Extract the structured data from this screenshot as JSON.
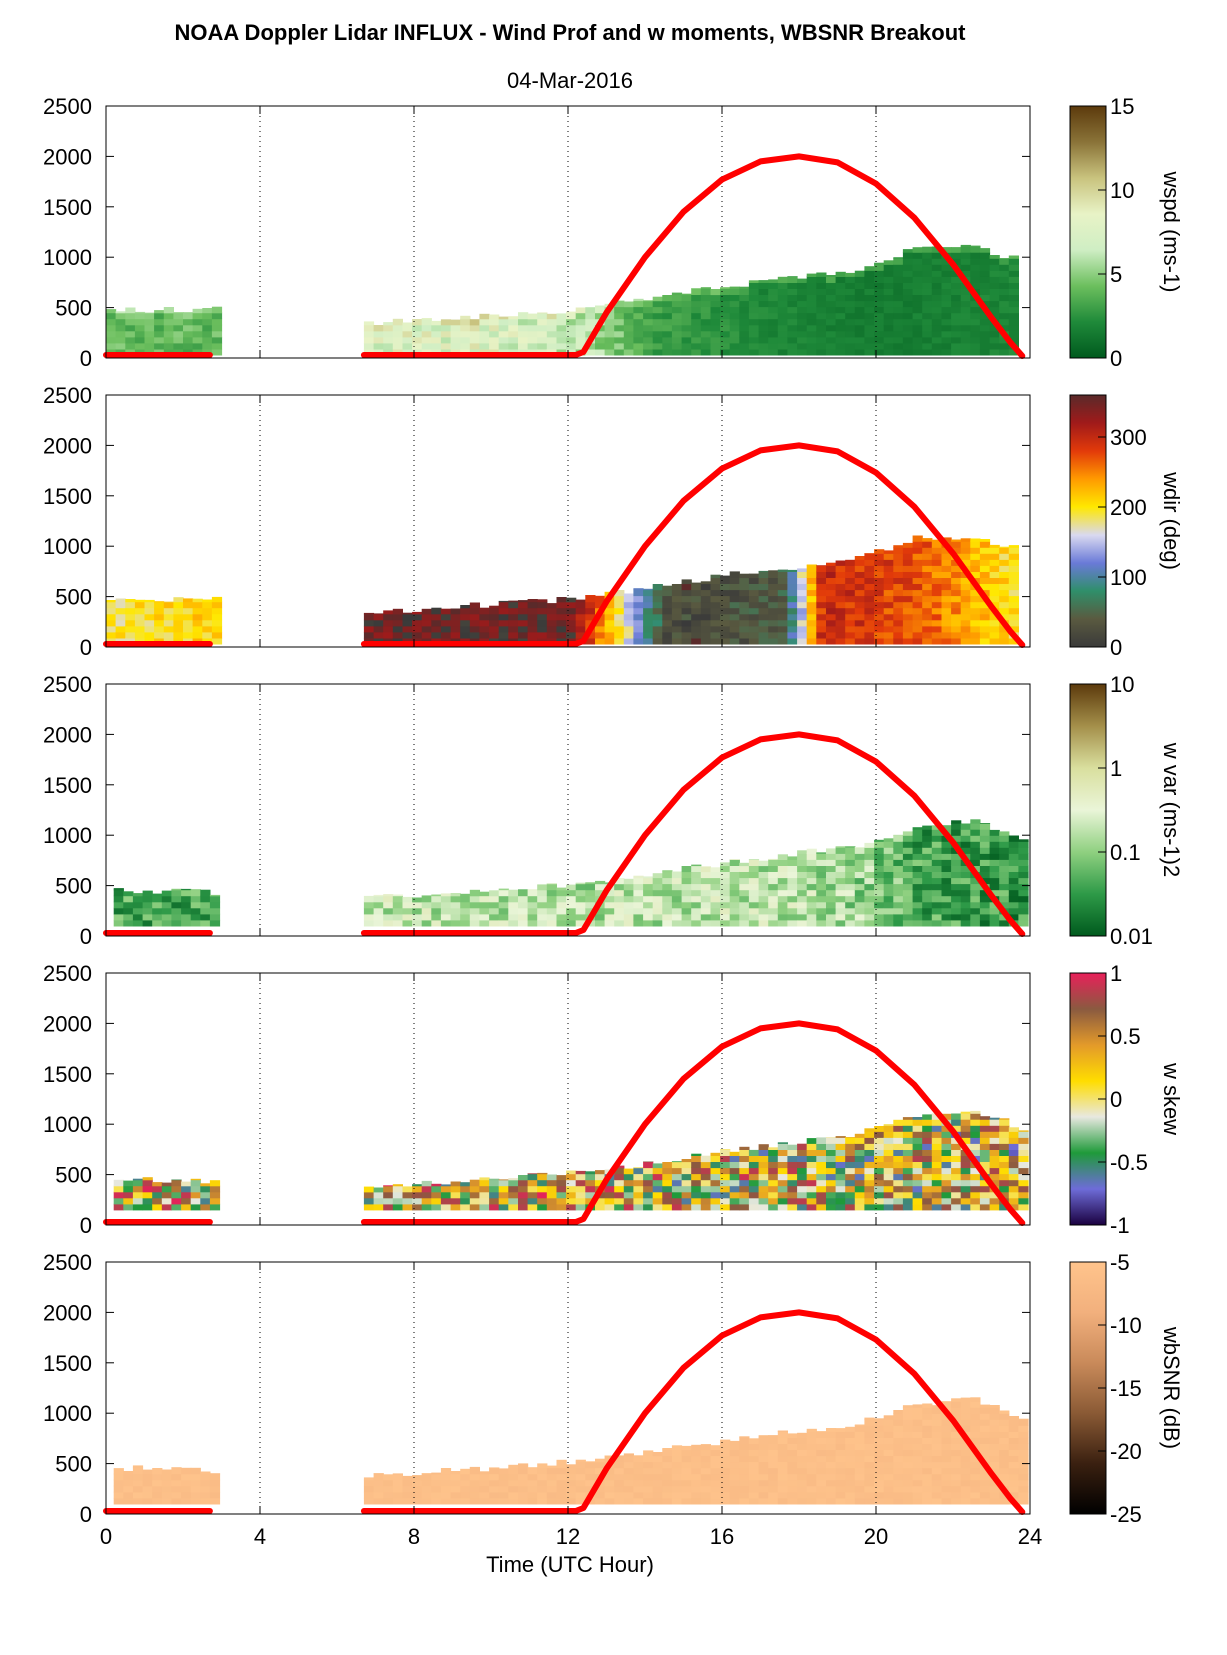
{
  "figure": {
    "title": "NOAA Doppler Lidar INFLUX - Wind Prof and w moments, WBSNR Breakout",
    "subtitle": "04-Mar-2016"
  },
  "colors": {
    "sun_curve": "#ff0000",
    "wspd_map": [
      "#005a1e",
      "#1f8a3a",
      "#6cbf5e",
      "#cfeec4",
      "#e8f3c6",
      "#c9c37e",
      "#8a7338",
      "#5c3a0c"
    ],
    "wdir_map": [
      "#3a3a3a",
      "#5a5a40",
      "#2f8f6a",
      "#6a7ad8",
      "#d9d9f0",
      "#ffe800",
      "#ff9a00",
      "#e23a0a",
      "#a01a1a",
      "#5a2a2a"
    ],
    "wvar_map": [
      "#005a1e",
      "#2e9a48",
      "#8fd080",
      "#eaf5d8",
      "#d9df9e",
      "#a48f4a",
      "#5c3a0c"
    ],
    "wskew_map": [
      "#1a0040",
      "#6e6cd8",
      "#1f9a3a",
      "#e8e8e0",
      "#ffdd00",
      "#e39a2a",
      "#8a5a40",
      "#e8205a"
    ],
    "wbsnr_map": [
      "#000000",
      "#3a2010",
      "#8a5a35",
      "#c98a5a",
      "#f2b07d",
      "#ffc48c"
    ]
  },
  "chart_data": [
    {
      "type": "heatmap",
      "name": "wspd",
      "title": "",
      "xlabel": "",
      "ylabel": "",
      "colorbar_label": "wspd (ms-1)",
      "colorbar_ticks": [
        0,
        5,
        10,
        15
      ],
      "colorbar_range": [
        0,
        15
      ],
      "xlim": [
        0,
        24
      ],
      "ylim": [
        0,
        2500
      ],
      "x_ticks": [
        0,
        4,
        8,
        12,
        16,
        20,
        24
      ],
      "y_ticks": [
        0,
        500,
        1000,
        1500,
        2000,
        2500
      ],
      "grid": "x-dotted",
      "data_top_m": [
        {
          "x": 0.0,
          "top": 480
        },
        {
          "x": 2.9,
          "top": 480
        },
        {
          "x": 6.7,
          "top": 340
        },
        {
          "x": 12.3,
          "top": 480
        },
        {
          "x": 15.9,
          "top": 700
        },
        {
          "x": 19.6,
          "top": 880
        },
        {
          "x": 21.0,
          "top": 1080
        },
        {
          "x": 22.5,
          "top": 1100
        },
        {
          "x": 23.7,
          "top": 980
        }
      ],
      "value_profile": [
        {
          "x": 0.0,
          "v": 4.0
        },
        {
          "x": 2.9,
          "v": 4.0
        },
        {
          "x": 6.7,
          "v": 7.5
        },
        {
          "x": 10.0,
          "v": 8.0
        },
        {
          "x": 12.3,
          "v": 6.0
        },
        {
          "x": 14.0,
          "v": 3.0
        },
        {
          "x": 17.0,
          "v": 2.0
        },
        {
          "x": 20.0,
          "v": 1.5
        },
        {
          "x": 23.7,
          "v": 2.0
        }
      ]
    },
    {
      "type": "heatmap",
      "name": "wdir",
      "title": "",
      "xlabel": "",
      "ylabel": "",
      "colorbar_label": "wdir (deg)",
      "colorbar_ticks": [
        0,
        100,
        200,
        300
      ],
      "colorbar_range": [
        0,
        360
      ],
      "xlim": [
        0,
        24
      ],
      "ylim": [
        0,
        2500
      ],
      "x_ticks": [
        0,
        4,
        8,
        12,
        16,
        20,
        24
      ],
      "y_ticks": [
        0,
        500,
        1000,
        1500,
        2000,
        2500
      ],
      "grid": "x-dotted",
      "data_top_m": [
        {
          "x": 0.0,
          "top": 480
        },
        {
          "x": 2.9,
          "top": 480
        },
        {
          "x": 6.7,
          "top": 340
        },
        {
          "x": 12.3,
          "top": 480
        },
        {
          "x": 15.9,
          "top": 700
        },
        {
          "x": 19.6,
          "top": 880
        },
        {
          "x": 21.0,
          "top": 1080
        },
        {
          "x": 22.5,
          "top": 1100
        },
        {
          "x": 23.7,
          "top": 980
        }
      ],
      "value_profile": [
        {
          "x": 0.0,
          "v": 190
        },
        {
          "x": 2.9,
          "v": 210
        },
        {
          "x": 6.7,
          "v": 345
        },
        {
          "x": 12.0,
          "v": 350
        },
        {
          "x": 14.5,
          "v": 20
        },
        {
          "x": 17.5,
          "v": 40
        },
        {
          "x": 18.5,
          "v": 300
        },
        {
          "x": 21.0,
          "v": 270
        },
        {
          "x": 23.7,
          "v": 190
        }
      ]
    },
    {
      "type": "heatmap",
      "name": "w var",
      "title": "",
      "xlabel": "",
      "ylabel": "",
      "colorbar_label": "w var (ms-1)2",
      "colorbar_ticks": [
        0.01,
        0.1,
        1,
        10
      ],
      "colorbar_scale": "log",
      "colorbar_range": [
        0.01,
        10
      ],
      "xlim": [
        0,
        24
      ],
      "ylim": [
        0,
        2500
      ],
      "x_ticks": [
        0,
        4,
        8,
        12,
        16,
        20,
        24
      ],
      "y_ticks": [
        0,
        500,
        1000,
        1500,
        2000,
        2500
      ],
      "grid": "x-dotted",
      "data_bottom_m": 100,
      "data_top_m": [
        {
          "x": 0.2,
          "top": 460
        },
        {
          "x": 2.9,
          "top": 430
        },
        {
          "x": 6.7,
          "top": 370
        },
        {
          "x": 12.3,
          "top": 520
        },
        {
          "x": 16.0,
          "top": 720
        },
        {
          "x": 19.6,
          "top": 900
        },
        {
          "x": 21.0,
          "top": 1080
        },
        {
          "x": 22.5,
          "top": 1150
        },
        {
          "x": 23.9,
          "top": 950
        }
      ],
      "value_profile": [
        {
          "x": 0.2,
          "v": 0.04
        },
        {
          "x": 2.9,
          "v": 0.04
        },
        {
          "x": 6.7,
          "v": 0.2
        },
        {
          "x": 12.0,
          "v": 0.15
        },
        {
          "x": 16.0,
          "v": 0.2
        },
        {
          "x": 19.5,
          "v": 0.12
        },
        {
          "x": 21.0,
          "v": 0.04
        },
        {
          "x": 23.9,
          "v": 0.03
        }
      ]
    },
    {
      "type": "heatmap",
      "name": "w skew",
      "title": "",
      "xlabel": "",
      "ylabel": "",
      "colorbar_label": "w skew",
      "colorbar_ticks": [
        -1,
        -0.5,
        0,
        0.5,
        1
      ],
      "colorbar_range": [
        -1,
        1
      ],
      "xlim": [
        0,
        24
      ],
      "ylim": [
        0,
        2500
      ],
      "x_ticks": [
        0,
        4,
        8,
        12,
        16,
        20,
        24
      ],
      "y_ticks": [
        0,
        500,
        1000,
        1500,
        2000,
        2500
      ],
      "grid": "x-dotted",
      "data_bottom_m": 150,
      "data_top_m": [
        {
          "x": 0.2,
          "top": 460
        },
        {
          "x": 2.9,
          "top": 430
        },
        {
          "x": 6.7,
          "top": 370
        },
        {
          "x": 12.3,
          "top": 520
        },
        {
          "x": 16.0,
          "top": 720
        },
        {
          "x": 19.6,
          "top": 900
        },
        {
          "x": 21.0,
          "top": 1080
        },
        {
          "x": 22.5,
          "top": 1150
        },
        {
          "x": 23.9,
          "top": 950
        }
      ],
      "value_profile": [
        {
          "x": 0.2,
          "v": 0.2
        },
        {
          "x": 12.0,
          "v": 0.2
        },
        {
          "x": 23.9,
          "v": 0.0
        }
      ]
    },
    {
      "type": "heatmap",
      "name": "wbSNR",
      "title": "",
      "xlabel": "Time (UTC Hour)",
      "ylabel": "",
      "colorbar_label": "wbSNR (dB)",
      "colorbar_ticks": [
        -25,
        -20,
        -15,
        -10,
        -5
      ],
      "colorbar_range": [
        -25,
        -5
      ],
      "xlim": [
        0,
        24
      ],
      "ylim": [
        0,
        2500
      ],
      "x_ticks": [
        0,
        4,
        8,
        12,
        16,
        20,
        24
      ],
      "y_ticks": [
        0,
        500,
        1000,
        1500,
        2000,
        2500
      ],
      "grid": "x-dotted",
      "data_bottom_m": 100,
      "data_top_m": [
        {
          "x": 0.2,
          "top": 460
        },
        {
          "x": 2.9,
          "top": 430
        },
        {
          "x": 6.7,
          "top": 370
        },
        {
          "x": 12.3,
          "top": 520
        },
        {
          "x": 16.0,
          "top": 720
        },
        {
          "x": 19.6,
          "top": 900
        },
        {
          "x": 21.0,
          "top": 1080
        },
        {
          "x": 22.5,
          "top": 1150
        },
        {
          "x": 23.9,
          "top": 950
        }
      ],
      "value_profile": [
        {
          "x": 0.2,
          "v": -6
        },
        {
          "x": 23.9,
          "v": -6
        }
      ]
    }
  ],
  "sun_curve": {
    "description_series": "solar elevation proxy",
    "points": [
      {
        "x": 0.0,
        "y": 30
      },
      {
        "x": 2.7,
        "y": 30
      },
      {
        "x": 6.7,
        "y": 30
      },
      {
        "x": 12.2,
        "y": 30
      },
      {
        "x": 12.4,
        "y": 60
      },
      {
        "x": 13.0,
        "y": 450
      },
      {
        "x": 14.0,
        "y": 1000
      },
      {
        "x": 15.0,
        "y": 1450
      },
      {
        "x": 16.0,
        "y": 1770
      },
      {
        "x": 17.0,
        "y": 1950
      },
      {
        "x": 18.0,
        "y": 2000
      },
      {
        "x": 19.0,
        "y": 1940
      },
      {
        "x": 20.0,
        "y": 1730
      },
      {
        "x": 21.0,
        "y": 1390
      },
      {
        "x": 22.0,
        "y": 930
      },
      {
        "x": 23.0,
        "y": 400
      },
      {
        "x": 23.5,
        "y": 150
      },
      {
        "x": 23.8,
        "y": 20
      }
    ]
  }
}
